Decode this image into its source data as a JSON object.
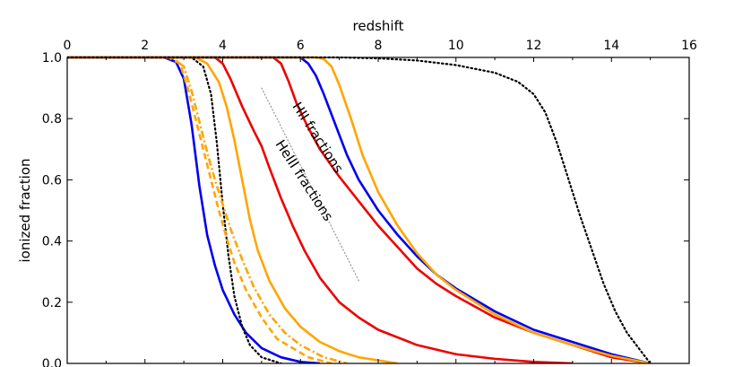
{
  "chart_data": {
    "type": "line",
    "xlabel": "redshift",
    "ylabel": "ionized fraction",
    "xlim": [
      0,
      16
    ],
    "ylim": [
      0,
      1.0
    ],
    "x_ticks": [
      0,
      2,
      4,
      6,
      8,
      10,
      12,
      14,
      16
    ],
    "y_ticks": [
      0.0,
      0.2,
      0.4,
      0.6,
      0.8,
      1.0
    ],
    "x_axis_position": "top",
    "grid": false,
    "legend": "none",
    "annotations": [
      {
        "text": "HII fractions",
        "x": 6.35,
        "y": 0.73,
        "rotation_deg": 57
      },
      {
        "text": "HeIII fractions",
        "x": 6.0,
        "y": 0.59,
        "rotation_deg": 57
      }
    ],
    "guide_line": {
      "color": "#999999",
      "style": "dotted",
      "points": [
        {
          "x": 5.0,
          "y": 0.9
        },
        {
          "x": 7.5,
          "y": 0.27
        }
      ]
    },
    "series": [
      {
        "color": "#0000ee",
        "style": "solid",
        "points": [
          {
            "x": 0,
            "y": 1.0
          },
          {
            "x": 2.5,
            "y": 1.0
          },
          {
            "x": 2.8,
            "y": 0.985
          },
          {
            "x": 3.0,
            "y": 0.93
          },
          {
            "x": 3.2,
            "y": 0.78
          },
          {
            "x": 3.4,
            "y": 0.58
          },
          {
            "x": 3.6,
            "y": 0.42
          },
          {
            "x": 3.8,
            "y": 0.32
          },
          {
            "x": 4.0,
            "y": 0.24
          },
          {
            "x": 4.3,
            "y": 0.16
          },
          {
            "x": 4.6,
            "y": 0.1
          },
          {
            "x": 5.0,
            "y": 0.05
          },
          {
            "x": 5.5,
            "y": 0.02
          },
          {
            "x": 6.0,
            "y": 0.005
          },
          {
            "x": 6.5,
            "y": 0.0
          }
        ]
      },
      {
        "color": "#000000",
        "style": "dotted",
        "points": [
          {
            "x": 0,
            "y": 1.0
          },
          {
            "x": 3.2,
            "y": 1.0
          },
          {
            "x": 3.5,
            "y": 0.97
          },
          {
            "x": 3.7,
            "y": 0.88
          },
          {
            "x": 3.85,
            "y": 0.72
          },
          {
            "x": 4.0,
            "y": 0.52
          },
          {
            "x": 4.15,
            "y": 0.35
          },
          {
            "x": 4.3,
            "y": 0.22
          },
          {
            "x": 4.5,
            "y": 0.12
          },
          {
            "x": 4.7,
            "y": 0.06
          },
          {
            "x": 5.0,
            "y": 0.02
          },
          {
            "x": 5.5,
            "y": 0.0
          }
        ]
      },
      {
        "color": "#ffa500",
        "style": "dashed",
        "points": [
          {
            "x": 0,
            "y": 1.0
          },
          {
            "x": 2.6,
            "y": 1.0
          },
          {
            "x": 2.9,
            "y": 0.98
          },
          {
            "x": 3.1,
            "y": 0.9
          },
          {
            "x": 3.3,
            "y": 0.8
          },
          {
            "x": 3.5,
            "y": 0.7
          },
          {
            "x": 3.7,
            "y": 0.6
          },
          {
            "x": 3.9,
            "y": 0.5
          },
          {
            "x": 4.1,
            "y": 0.41
          },
          {
            "x": 4.3,
            "y": 0.33
          },
          {
            "x": 4.6,
            "y": 0.24
          },
          {
            "x": 5.0,
            "y": 0.15
          },
          {
            "x": 5.4,
            "y": 0.08
          },
          {
            "x": 5.8,
            "y": 0.05
          },
          {
            "x": 6.2,
            "y": 0.02
          },
          {
            "x": 6.8,
            "y": 0.0
          }
        ]
      },
      {
        "color": "#ffa500",
        "style": "dashdot",
        "points": [
          {
            "x": 0,
            "y": 1.0
          },
          {
            "x": 2.7,
            "y": 1.0
          },
          {
            "x": 3.0,
            "y": 0.97
          },
          {
            "x": 3.2,
            "y": 0.89
          },
          {
            "x": 3.4,
            "y": 0.79
          },
          {
            "x": 3.6,
            "y": 0.69
          },
          {
            "x": 3.8,
            "y": 0.6
          },
          {
            "x": 4.0,
            "y": 0.52
          },
          {
            "x": 4.2,
            "y": 0.44
          },
          {
            "x": 4.5,
            "y": 0.34
          },
          {
            "x": 4.8,
            "y": 0.25
          },
          {
            "x": 5.2,
            "y": 0.16
          },
          {
            "x": 5.6,
            "y": 0.1
          },
          {
            "x": 6.0,
            "y": 0.06
          },
          {
            "x": 6.6,
            "y": 0.02
          },
          {
            "x": 7.2,
            "y": 0.0
          }
        ]
      },
      {
        "color": "#ffa500",
        "style": "solid",
        "points": [
          {
            "x": 0,
            "y": 1.0
          },
          {
            "x": 3.3,
            "y": 1.0
          },
          {
            "x": 3.6,
            "y": 0.98
          },
          {
            "x": 3.9,
            "y": 0.92
          },
          {
            "x": 4.1,
            "y": 0.84
          },
          {
            "x": 4.3,
            "y": 0.73
          },
          {
            "x": 4.5,
            "y": 0.6
          },
          {
            "x": 4.7,
            "y": 0.47
          },
          {
            "x": 4.9,
            "y": 0.37
          },
          {
            "x": 5.2,
            "y": 0.27
          },
          {
            "x": 5.6,
            "y": 0.18
          },
          {
            "x": 6.0,
            "y": 0.12
          },
          {
            "x": 6.5,
            "y": 0.07
          },
          {
            "x": 7.0,
            "y": 0.04
          },
          {
            "x": 7.5,
            "y": 0.02
          },
          {
            "x": 8.5,
            "y": 0.0
          }
        ]
      },
      {
        "color": "#ee0000",
        "style": "solid",
        "points": [
          {
            "x": 0,
            "y": 1.0
          },
          {
            "x": 3.8,
            "y": 1.0
          },
          {
            "x": 4.0,
            "y": 0.98
          },
          {
            "x": 4.2,
            "y": 0.93
          },
          {
            "x": 4.5,
            "y": 0.84
          },
          {
            "x": 4.8,
            "y": 0.76
          },
          {
            "x": 5.0,
            "y": 0.71
          },
          {
            "x": 5.2,
            "y": 0.64
          },
          {
            "x": 5.5,
            "y": 0.54
          },
          {
            "x": 5.8,
            "y": 0.45
          },
          {
            "x": 6.1,
            "y": 0.37
          },
          {
            "x": 6.5,
            "y": 0.28
          },
          {
            "x": 7.0,
            "y": 0.2
          },
          {
            "x": 7.5,
            "y": 0.15
          },
          {
            "x": 8.0,
            "y": 0.11
          },
          {
            "x": 9.0,
            "y": 0.06
          },
          {
            "x": 10.0,
            "y": 0.03
          },
          {
            "x": 11.0,
            "y": 0.015
          },
          {
            "x": 12.0,
            "y": 0.005
          },
          {
            "x": 13.0,
            "y": 0.0
          }
        ]
      },
      {
        "color": "#ee0000",
        "style": "solid",
        "points": [
          {
            "x": 0,
            "y": 1.0
          },
          {
            "x": 5.3,
            "y": 1.0
          },
          {
            "x": 5.5,
            "y": 0.98
          },
          {
            "x": 5.7,
            "y": 0.92
          },
          {
            "x": 5.9,
            "y": 0.85
          },
          {
            "x": 6.2,
            "y": 0.77
          },
          {
            "x": 6.5,
            "y": 0.7
          },
          {
            "x": 7.0,
            "y": 0.61
          },
          {
            "x": 7.5,
            "y": 0.53
          },
          {
            "x": 8.0,
            "y": 0.45
          },
          {
            "x": 8.5,
            "y": 0.38
          },
          {
            "x": 9.0,
            "y": 0.31
          },
          {
            "x": 9.5,
            "y": 0.26
          },
          {
            "x": 10.0,
            "y": 0.22
          },
          {
            "x": 11.0,
            "y": 0.15
          },
          {
            "x": 12.0,
            "y": 0.1
          },
          {
            "x": 13.0,
            "y": 0.06
          },
          {
            "x": 14.0,
            "y": 0.02
          },
          {
            "x": 15.0,
            "y": 0.0
          }
        ]
      },
      {
        "color": "#0000ee",
        "style": "solid",
        "points": [
          {
            "x": 0,
            "y": 1.0
          },
          {
            "x": 6.0,
            "y": 1.0
          },
          {
            "x": 6.2,
            "y": 0.98
          },
          {
            "x": 6.4,
            "y": 0.94
          },
          {
            "x": 6.6,
            "y": 0.88
          },
          {
            "x": 6.9,
            "y": 0.78
          },
          {
            "x": 7.2,
            "y": 0.68
          },
          {
            "x": 7.5,
            "y": 0.6
          },
          {
            "x": 8.0,
            "y": 0.5
          },
          {
            "x": 8.5,
            "y": 0.42
          },
          {
            "x": 9.0,
            "y": 0.35
          },
          {
            "x": 9.5,
            "y": 0.29
          },
          {
            "x": 10.0,
            "y": 0.245
          },
          {
            "x": 11.0,
            "y": 0.17
          },
          {
            "x": 12.0,
            "y": 0.11
          },
          {
            "x": 13.0,
            "y": 0.07
          },
          {
            "x": 14.0,
            "y": 0.03
          },
          {
            "x": 15.0,
            "y": 0.0
          }
        ]
      },
      {
        "color": "#ffa500",
        "style": "solid",
        "points": [
          {
            "x": 0,
            "y": 1.0
          },
          {
            "x": 6.4,
            "y": 1.0
          },
          {
            "x": 6.6,
            "y": 0.995
          },
          {
            "x": 6.8,
            "y": 0.97
          },
          {
            "x": 7.0,
            "y": 0.91
          },
          {
            "x": 7.3,
            "y": 0.8
          },
          {
            "x": 7.6,
            "y": 0.68
          },
          {
            "x": 8.0,
            "y": 0.56
          },
          {
            "x": 8.5,
            "y": 0.45
          },
          {
            "x": 9.0,
            "y": 0.36
          },
          {
            "x": 9.5,
            "y": 0.29
          },
          {
            "x": 10.0,
            "y": 0.24
          },
          {
            "x": 11.0,
            "y": 0.16
          },
          {
            "x": 12.0,
            "y": 0.1
          },
          {
            "x": 13.0,
            "y": 0.06
          },
          {
            "x": 14.0,
            "y": 0.025
          },
          {
            "x": 15.0,
            "y": 0.0
          }
        ]
      },
      {
        "color": "#000000",
        "style": "dotted",
        "points": [
          {
            "x": 0,
            "y": 1.0
          },
          {
            "x": 7.0,
            "y": 1.0
          },
          {
            "x": 8.0,
            "y": 0.997
          },
          {
            "x": 9.0,
            "y": 0.99
          },
          {
            "x": 10.0,
            "y": 0.975
          },
          {
            "x": 11.0,
            "y": 0.95
          },
          {
            "x": 11.6,
            "y": 0.92
          },
          {
            "x": 12.0,
            "y": 0.88
          },
          {
            "x": 12.3,
            "y": 0.82
          },
          {
            "x": 12.6,
            "y": 0.72
          },
          {
            "x": 12.9,
            "y": 0.6
          },
          {
            "x": 13.2,
            "y": 0.48
          },
          {
            "x": 13.5,
            "y": 0.37
          },
          {
            "x": 13.8,
            "y": 0.26
          },
          {
            "x": 14.1,
            "y": 0.17
          },
          {
            "x": 14.4,
            "y": 0.1
          },
          {
            "x": 14.7,
            "y": 0.05
          },
          {
            "x": 15.0,
            "y": 0.0
          }
        ]
      }
    ]
  }
}
